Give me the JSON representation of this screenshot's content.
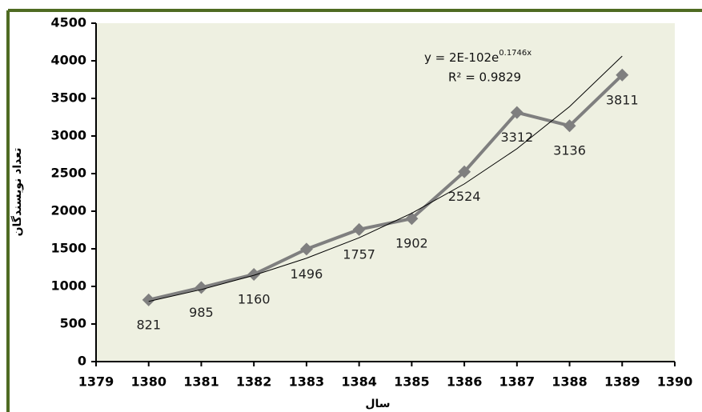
{
  "chart_data": {
    "type": "line",
    "x_label": "سال",
    "y_label": "تعداد نویسندگان",
    "x": [
      1380,
      1381,
      1382,
      1383,
      1384,
      1385,
      1386,
      1387,
      1388,
      1389
    ],
    "series": [
      {
        "color": "#7f7f7f",
        "values": [
          821,
          985,
          1160,
          1496,
          1757,
          1902,
          2524,
          3312,
          3136,
          3811
        ]
      },
      {
        "color": "#000000",
        "values": [
          800,
          958,
          1148,
          1375,
          1647,
          1973,
          2363,
          2831,
          3391,
          4062
        ]
      }
    ],
    "trendline": {
      "equation": "y = 2E-102e",
      "exponent": "0.1746x",
      "r_squared": "R² = 0.9829"
    },
    "xlim": [
      1379,
      1390
    ],
    "xticks": [
      1379,
      1380,
      1381,
      1382,
      1383,
      1384,
      1385,
      1386,
      1387,
      1388,
      1389,
      1390
    ],
    "ylim": [
      0,
      4500
    ],
    "yticks": [
      0,
      500,
      1000,
      1500,
      2000,
      2500,
      3000,
      3500,
      4000,
      4500
    ],
    "plot_background": "#eef0e1"
  }
}
